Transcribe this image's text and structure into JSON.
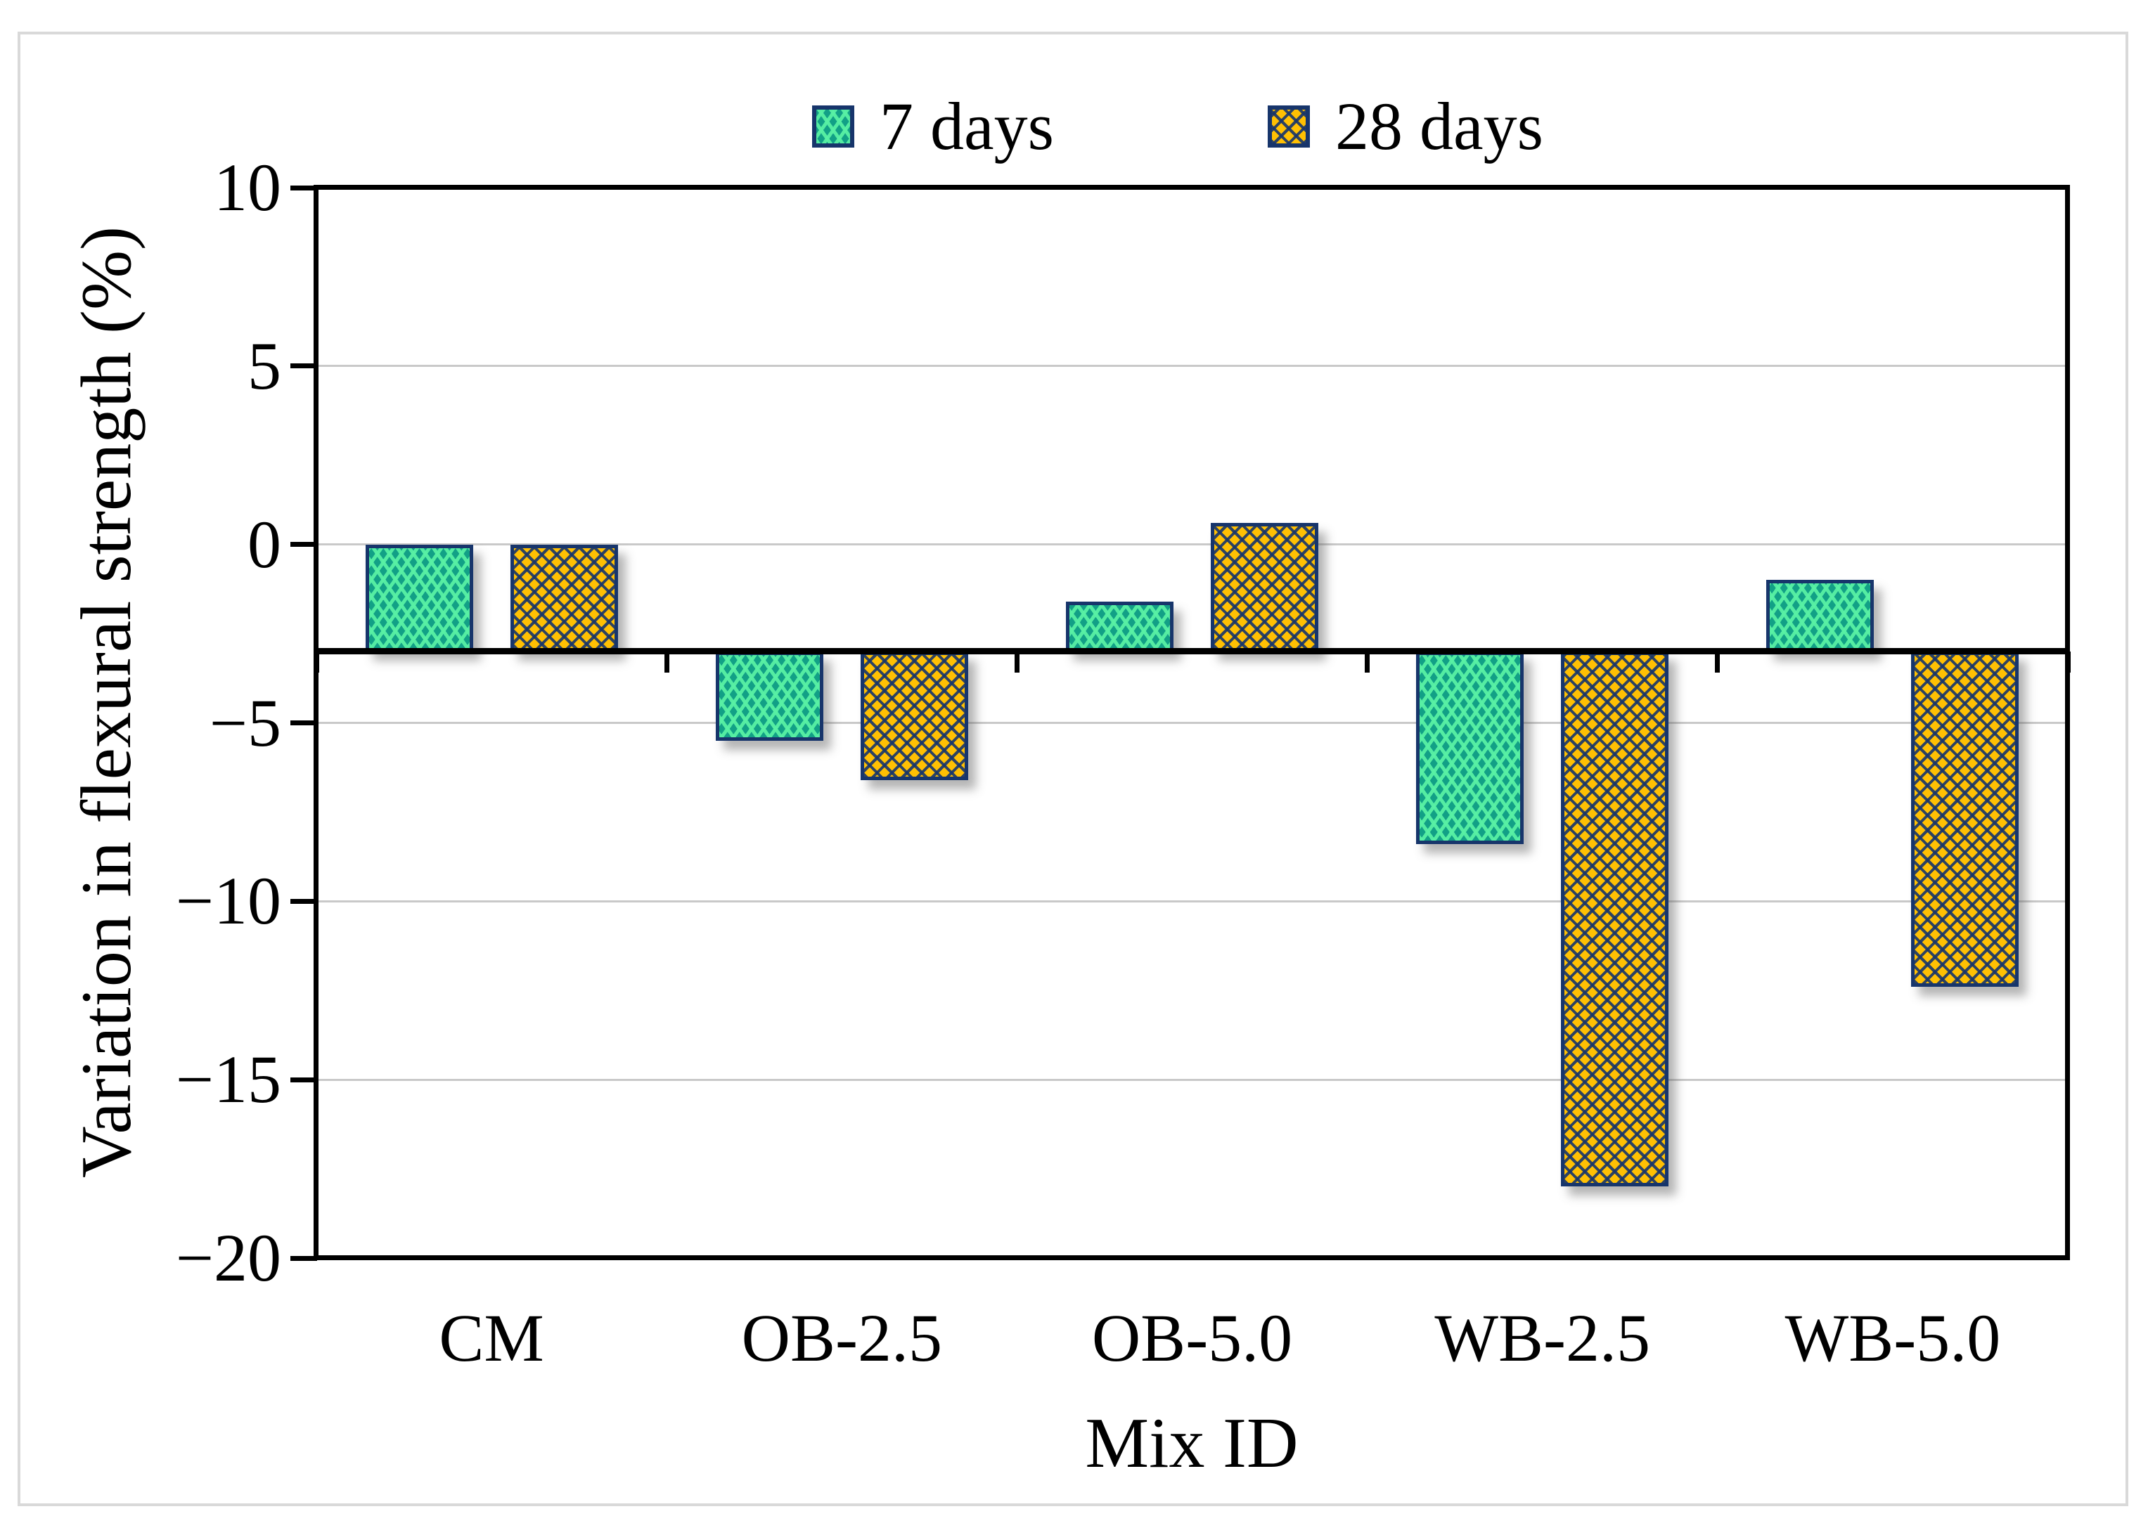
{
  "legend": [
    {
      "label": "7 days"
    },
    {
      "label": "28 days"
    }
  ],
  "axes": {
    "y_title": "Variation in flexural strength (%)",
    "x_title": "Mix ID"
  },
  "chart_data": {
    "type": "bar",
    "title": "",
    "categories": [
      "CM",
      "OB-2.5",
      "OB-5.0",
      "WB-2.5",
      "WB-5.0"
    ],
    "series": [
      {
        "name": "7 days",
        "values": [
          0.0,
          -5.5,
          -1.6,
          -8.4,
          -1.0
        ]
      },
      {
        "name": "28 days",
        "values": [
          0.0,
          -6.6,
          0.6,
          -18.0,
          -12.4
        ]
      }
    ],
    "xlabel": "Mix ID",
    "ylabel": "Variation in flexural strength (%)",
    "ylim": [
      -20,
      10
    ],
    "yticks": [
      10,
      5,
      0,
      -5,
      -10,
      -15,
      -20
    ],
    "ytick_labels": [
      "10",
      "5",
      "0",
      "−5",
      "−10",
      "−15",
      "−20"
    ],
    "gridlines_at": [
      5,
      0,
      -5,
      -10,
      -15
    ],
    "bar_baseline": -3,
    "grid": "horizontal",
    "legend_position": "top-center",
    "colors": {
      "series_7_days": "#12a086",
      "series_7_days_hatch": "#58f0a4",
      "series_28_days": "#ffc003",
      "series_28_days_hatch": "#1f3864",
      "bar_border": "#17356b",
      "axis": "#000000",
      "gridline": "#c9c9c9",
      "outer_frame": "#d9d9d9",
      "background": "#ffffff"
    }
  }
}
